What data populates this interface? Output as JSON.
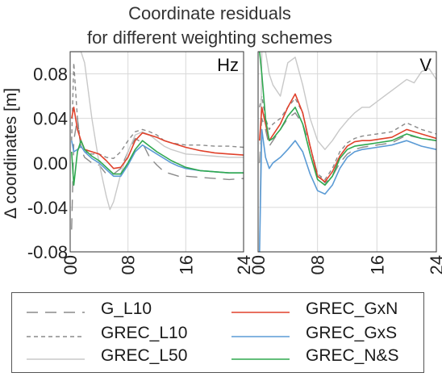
{
  "title_line1": "Coordinate residuals",
  "title_line2": "for different weighting schemes",
  "ylabel": "Δ coordinates [m]",
  "colors": {
    "G_L10": "#8a8a8a",
    "GREC_L10": "#8a8a8a",
    "GREC_L50": "#c8c8c8",
    "GREC_GxN": "#e0412b",
    "GREC_GxS": "#5b9bd5",
    "GREC_N&S": "#2fa84f",
    "grid": "#d9d9d9"
  },
  "legend": {
    "items": [
      {
        "key": "G_L10",
        "label": "G_L10",
        "style": "longdash"
      },
      {
        "key": "GREC_L10",
        "label": "GREC_L10",
        "style": "shortdash"
      },
      {
        "key": "GREC_L50",
        "label": "GREC_L50",
        "style": "solid"
      },
      {
        "key": "GREC_GxN",
        "label": "GREC_GxN",
        "style": "solid"
      },
      {
        "key": "GREC_GxS",
        "label": "GREC_GxS",
        "style": "solid"
      },
      {
        "key": "GREC_N&S",
        "label": "GREC_N&S",
        "style": "solid"
      }
    ]
  },
  "chart_data": [
    {
      "type": "line",
      "panel_label": "Hz",
      "x_ticks": [
        "00",
        "08",
        "16",
        "24"
      ],
      "y_ticks": [
        "-0.08",
        "-0.04",
        "0.00",
        "0.04",
        "0.08"
      ],
      "xlim": [
        0,
        24
      ],
      "ylim": [
        -0.08,
        0.1
      ],
      "grid": true,
      "series": [
        {
          "name": "G_L10",
          "x": [
            0.2,
            0.5,
            1,
            1.5,
            2,
            3,
            4,
            5,
            6,
            7,
            8,
            9,
            10,
            11,
            12,
            13,
            14,
            15,
            16,
            18,
            20,
            22,
            24
          ],
          "y": [
            -0.06,
            0.02,
            0.04,
            0.012,
            0.005,
            0.0,
            -0.002,
            -0.01,
            -0.01,
            -0.005,
            0.01,
            0.022,
            0.018,
            0.005,
            -0.002,
            -0.008,
            -0.01,
            -0.012,
            -0.012,
            -0.013,
            -0.014,
            -0.015,
            -0.014
          ]
        },
        {
          "name": "GREC_L10",
          "x": [
            0.2,
            0.5,
            1,
            1.5,
            2,
            3,
            4,
            5,
            6,
            7,
            8,
            9,
            10,
            11,
            12,
            13,
            14,
            15,
            16,
            18,
            20,
            22,
            24
          ],
          "y": [
            0.02,
            0.09,
            0.04,
            0.015,
            0.01,
            0.008,
            0.008,
            0.005,
            0.004,
            0.01,
            0.02,
            0.028,
            0.03,
            0.028,
            0.025,
            0.02,
            0.018,
            0.017,
            0.016,
            0.016,
            0.015,
            0.015,
            0.014
          ]
        },
        {
          "name": "GREC_L50",
          "x": [
            0.2,
            0.5,
            1,
            1.5,
            2,
            3,
            4,
            5,
            5.5,
            6,
            7,
            8,
            9,
            10,
            11,
            12,
            13,
            14,
            15,
            16,
            18,
            20,
            22,
            24
          ],
          "y": [
            0.1,
            0.1,
            0.1,
            0.1,
            0.09,
            0.04,
            0.0,
            -0.03,
            -0.042,
            -0.035,
            -0.01,
            0.01,
            0.025,
            0.028,
            0.025,
            0.02,
            0.015,
            0.012,
            0.01,
            0.008,
            0.007,
            0.006,
            0.005,
            0.005
          ]
        },
        {
          "name": "GREC_GxN",
          "x": [
            0.2,
            0.5,
            1,
            1.5,
            2,
            3,
            4,
            5,
            6,
            7,
            8,
            9,
            10,
            11,
            12,
            13,
            14,
            15,
            16,
            18,
            20,
            22,
            24
          ],
          "y": [
            0.04,
            0.05,
            0.03,
            0.02,
            0.012,
            0.01,
            0.008,
            0.002,
            -0.005,
            -0.004,
            0.005,
            0.02,
            0.027,
            0.025,
            0.023,
            0.02,
            0.018,
            0.016,
            0.014,
            0.011,
            0.009,
            0.008,
            0.007
          ]
        },
        {
          "name": "GREC_GxS",
          "x": [
            0.2,
            0.5,
            1,
            1.5,
            2,
            3,
            4,
            5,
            6,
            7,
            8,
            9,
            10,
            11,
            12,
            13,
            14,
            15,
            16,
            18,
            20,
            22,
            24
          ],
          "y": [
            0.02,
            0.01,
            0.012,
            0.015,
            0.01,
            0.004,
            0.0,
            -0.006,
            -0.012,
            -0.012,
            -0.002,
            0.01,
            0.016,
            0.012,
            0.008,
            0.004,
            0.0,
            -0.003,
            -0.005,
            -0.007,
            -0.008,
            -0.009,
            -0.009
          ]
        },
        {
          "name": "GREC_N&S",
          "x": [
            0.2,
            0.5,
            1,
            1.5,
            2,
            3,
            4,
            5,
            6,
            7,
            8,
            9,
            10,
            11,
            12,
            13,
            14,
            15,
            16,
            18,
            20,
            22,
            24
          ],
          "y": [
            0.01,
            -0.02,
            0.01,
            0.02,
            0.012,
            0.006,
            0.002,
            -0.004,
            -0.01,
            -0.01,
            0.0,
            0.012,
            0.02,
            0.015,
            0.01,
            0.006,
            0.002,
            -0.001,
            -0.004,
            -0.007,
            -0.008,
            -0.009,
            -0.009
          ]
        }
      ]
    },
    {
      "type": "line",
      "panel_label": "V",
      "x_ticks": [
        "00",
        "08",
        "16",
        "24"
      ],
      "xlim": [
        0,
        24
      ],
      "ylim": [
        -0.08,
        0.1
      ],
      "grid": true,
      "series": [
        {
          "name": "G_L10",
          "x": [
            0.2,
            0.5,
            1,
            1.5,
            2,
            3,
            4,
            5,
            6,
            7,
            8,
            9,
            10,
            11,
            12,
            13,
            14,
            15,
            16,
            18,
            20,
            22,
            24
          ],
          "y": [
            0.0,
            0.04,
            0.03,
            0.015,
            0.02,
            0.03,
            0.04,
            0.045,
            0.035,
            0.015,
            -0.01,
            -0.018,
            -0.012,
            0.0,
            0.008,
            0.012,
            0.014,
            0.015,
            0.016,
            0.018,
            0.025,
            0.022,
            0.02
          ]
        },
        {
          "name": "GREC_L10",
          "x": [
            0.2,
            0.5,
            1,
            1.5,
            2,
            3,
            4,
            5,
            6,
            7,
            8,
            9,
            10,
            11,
            12,
            13,
            14,
            15,
            16,
            18,
            20,
            22,
            24
          ],
          "y": [
            0.05,
            0.06,
            0.04,
            0.03,
            0.035,
            0.04,
            0.05,
            0.058,
            0.045,
            0.015,
            -0.01,
            -0.015,
            -0.005,
            0.01,
            0.018,
            0.022,
            0.024,
            0.025,
            0.026,
            0.028,
            0.036,
            0.03,
            0.026
          ]
        },
        {
          "name": "GREC_L50",
          "x": [
            0.2,
            0.5,
            1,
            1.5,
            2,
            3,
            4,
            5,
            6,
            7,
            8,
            9,
            10,
            11,
            12,
            13,
            14,
            15,
            16,
            17,
            18,
            19,
            20,
            21,
            22,
            23,
            24
          ],
          "y": [
            -0.08,
            0.1,
            0.1,
            0.08,
            0.07,
            0.06,
            0.09,
            0.095,
            0.07,
            0.04,
            0.02,
            0.012,
            0.02,
            0.03,
            0.038,
            0.045,
            0.05,
            0.05,
            0.055,
            0.06,
            0.065,
            0.07,
            0.075,
            0.072,
            0.082,
            0.085,
            0.075
          ]
        },
        {
          "name": "GREC_GxN",
          "x": [
            0.2,
            0.5,
            1,
            1.5,
            2,
            3,
            4,
            5,
            6,
            7,
            8,
            9,
            10,
            11,
            12,
            13,
            14,
            15,
            16,
            18,
            20,
            22,
            24
          ],
          "y": [
            0.02,
            0.05,
            0.035,
            0.02,
            0.025,
            0.035,
            0.05,
            0.062,
            0.045,
            0.015,
            -0.012,
            -0.017,
            -0.008,
            0.006,
            0.015,
            0.019,
            0.02,
            0.02,
            0.021,
            0.023,
            0.03,
            0.026,
            0.022
          ]
        },
        {
          "name": "GREC_GxS",
          "x": [
            0.2,
            0.5,
            1,
            1.5,
            2,
            3,
            4,
            5,
            6,
            7,
            8,
            9,
            10,
            11,
            12,
            13,
            14,
            15,
            16,
            18,
            20,
            22,
            24
          ],
          "y": [
            -0.08,
            0.03,
            0.005,
            -0.005,
            0.0,
            0.005,
            0.012,
            0.02,
            0.01,
            -0.01,
            -0.025,
            -0.028,
            -0.02,
            -0.005,
            0.005,
            0.01,
            0.012,
            0.013,
            0.014,
            0.016,
            0.02,
            0.015,
            0.012
          ]
        },
        {
          "name": "GREC_N&S",
          "x": [
            0.2,
            0.5,
            1,
            1.5,
            2,
            3,
            4,
            5,
            6,
            7,
            8,
            9,
            10,
            11,
            12,
            13,
            14,
            15,
            16,
            18,
            20,
            22,
            24
          ],
          "y": [
            0.1,
            0.08,
            0.04,
            0.02,
            0.022,
            0.03,
            0.042,
            0.05,
            0.035,
            0.008,
            -0.015,
            -0.02,
            -0.012,
            0.004,
            0.012,
            0.015,
            0.016,
            0.017,
            0.018,
            0.02,
            0.026,
            0.022,
            0.02
          ]
        }
      ]
    }
  ]
}
